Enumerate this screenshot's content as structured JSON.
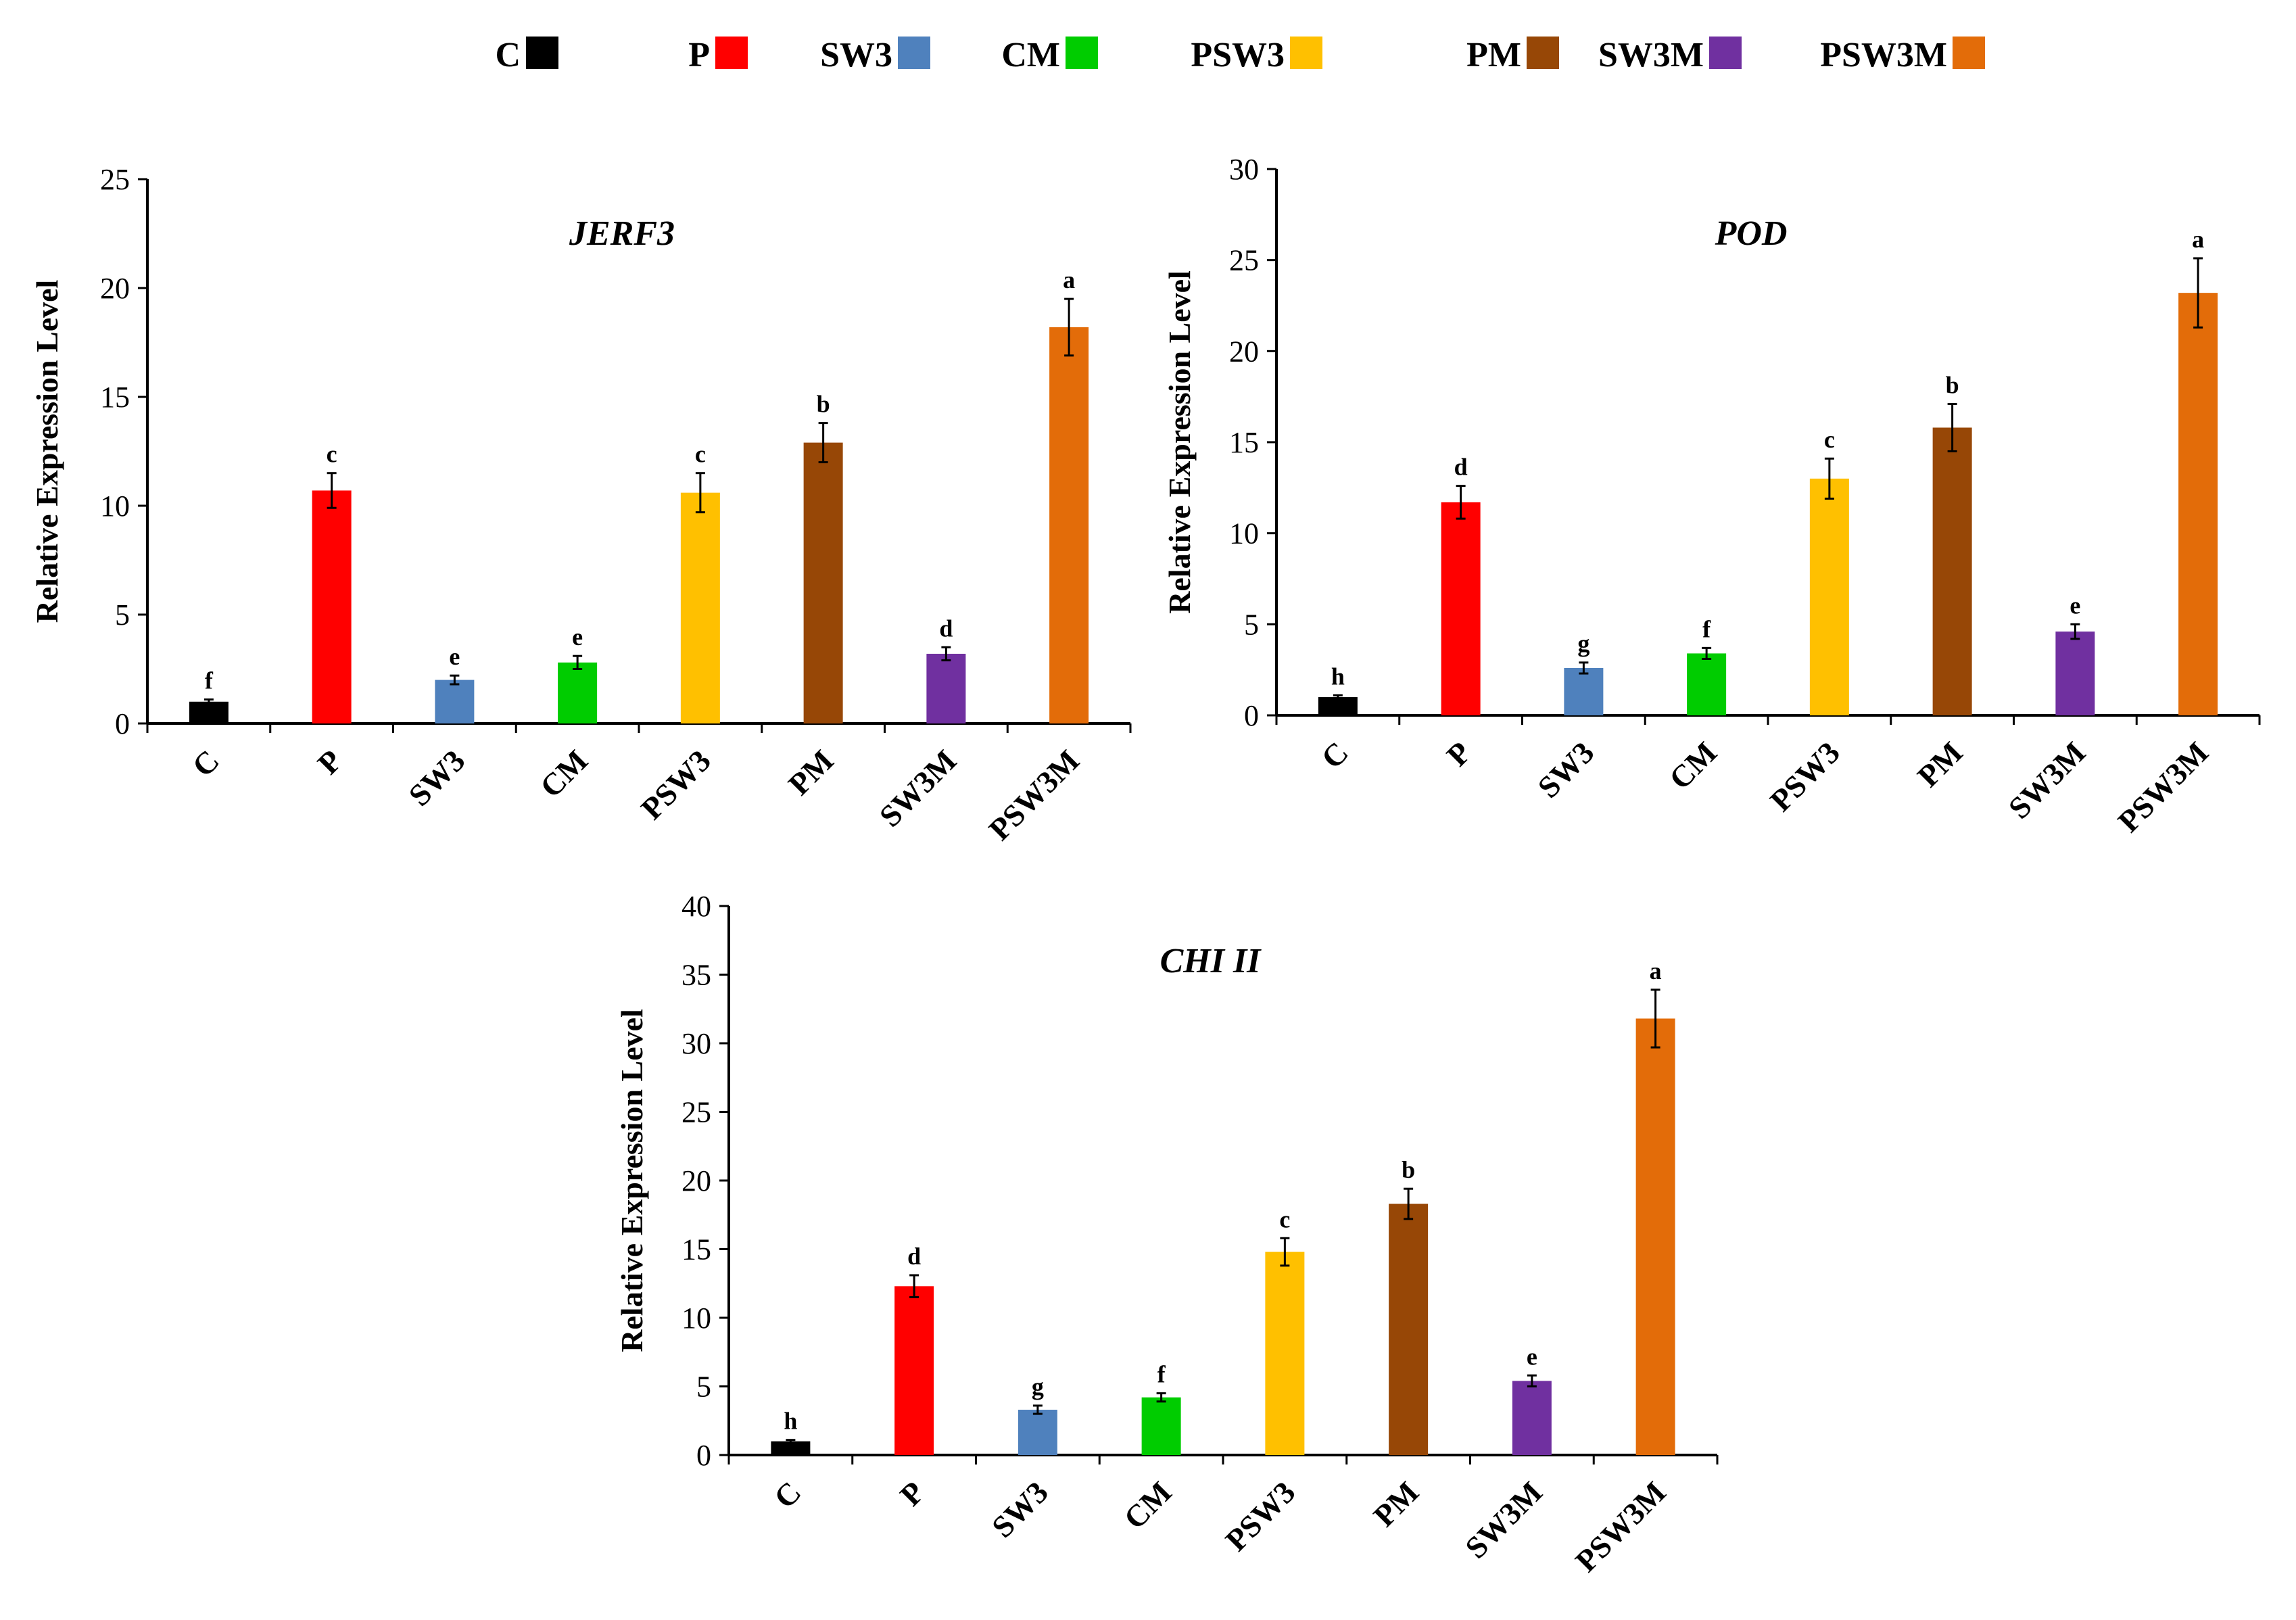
{
  "chart_data": [
    {
      "type": "bar",
      "title": "JERF3",
      "xlabel": "",
      "ylabel": "Relative Expression Level",
      "ylim": [
        0,
        25
      ],
      "yticks": [
        0,
        5,
        10,
        15,
        20,
        25
      ],
      "categories": [
        "C",
        "P",
        "SW3",
        "CM",
        "PSW3",
        "PM",
        "SW3M",
        "PSW3M"
      ],
      "values": [
        1.0,
        10.7,
        2.0,
        2.8,
        10.6,
        12.9,
        3.2,
        18.2
      ],
      "errors": [
        0.1,
        0.8,
        0.2,
        0.3,
        0.9,
        0.9,
        0.3,
        1.3
      ],
      "letters": [
        "f",
        "c",
        "e",
        "e",
        "c",
        "b",
        "d",
        "a"
      ]
    },
    {
      "type": "bar",
      "title": "POD",
      "xlabel": "",
      "ylabel": "Relative Expression Level",
      "ylim": [
        0,
        30
      ],
      "yticks": [
        0,
        5,
        10,
        15,
        20,
        25,
        30
      ],
      "categories": [
        "C",
        "P",
        "SW3",
        "CM",
        "PSW3",
        "PM",
        "SW3M",
        "PSW3M"
      ],
      "values": [
        1.0,
        11.7,
        2.6,
        3.4,
        13.0,
        15.8,
        4.6,
        23.2
      ],
      "errors": [
        0.1,
        0.9,
        0.3,
        0.3,
        1.1,
        1.3,
        0.4,
        1.9
      ],
      "letters": [
        "h",
        "d",
        "g",
        "f",
        "c",
        "b",
        "e",
        "a"
      ]
    },
    {
      "type": "bar",
      "title": "CHI II",
      "xlabel": "",
      "ylabel": "Relative Expression Level",
      "ylim": [
        0,
        40
      ],
      "yticks": [
        0,
        5,
        10,
        15,
        20,
        25,
        30,
        35,
        40
      ],
      "categories": [
        "C",
        "P",
        "SW3",
        "CM",
        "PSW3",
        "PM",
        "SW3M",
        "PSW3M"
      ],
      "values": [
        1.0,
        12.3,
        3.3,
        4.2,
        14.8,
        18.3,
        5.4,
        31.8
      ],
      "errors": [
        0.1,
        0.8,
        0.3,
        0.3,
        1.0,
        1.1,
        0.4,
        2.1
      ],
      "letters": [
        "h",
        "d",
        "g",
        "f",
        "c",
        "b",
        "e",
        "a"
      ]
    }
  ],
  "legend": [
    {
      "label": "C",
      "color": "#000000"
    },
    {
      "label": "P",
      "color": "#ff0000"
    },
    {
      "label": "SW3",
      "color": "#4f81bd"
    },
    {
      "label": "CM",
      "color": "#00cc00"
    },
    {
      "label": "PSW3",
      "color": "#ffc000"
    },
    {
      "label": "PM",
      "color": "#974706"
    },
    {
      "label": "SW3M",
      "color": "#7030a0"
    },
    {
      "label": "PSW3M",
      "color": "#e36c09"
    }
  ]
}
